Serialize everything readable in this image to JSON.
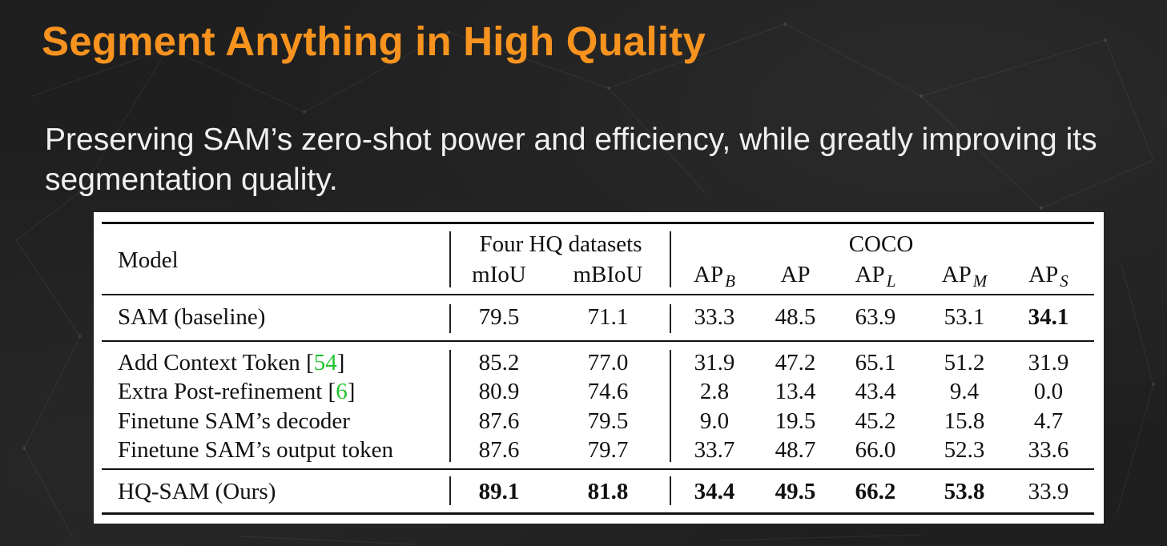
{
  "title": "Segment Anything in High Quality",
  "subtitle": "Preserving SAM’s zero-shot power and efficiency, while greatly improving its segmentation quality.",
  "table": {
    "header": {
      "model": "Model",
      "group_hq": "Four HQ datasets",
      "group_coco": "COCO",
      "mIoU": "mIoU",
      "mBIoU": "mBIoU",
      "ap": "AP",
      "sub_b": "B",
      "sub_l": "L",
      "sub_m": "M",
      "sub_s": "S"
    },
    "rows": [
      {
        "model": "SAM (baseline)",
        "cite": "",
        "values": [
          "79.5",
          "71.1",
          "33.3",
          "48.5",
          "63.9",
          "53.1",
          "34.1"
        ],
        "bold": [
          false,
          false,
          false,
          false,
          false,
          false,
          true
        ]
      },
      {
        "model": "Add Context Token",
        "cite": "54",
        "values": [
          "85.2",
          "77.0",
          "31.9",
          "47.2",
          "65.1",
          "51.2",
          "31.9"
        ],
        "bold": [
          false,
          false,
          false,
          false,
          false,
          false,
          false
        ]
      },
      {
        "model": "Extra Post-refinement",
        "cite": "6",
        "values": [
          "80.9",
          "74.6",
          "2.8",
          "13.4",
          "43.4",
          "9.4",
          "0.0"
        ],
        "bold": [
          false,
          false,
          false,
          false,
          false,
          false,
          false
        ]
      },
      {
        "model": "Finetune SAM’s decoder",
        "cite": "",
        "values": [
          "87.6",
          "79.5",
          "9.0",
          "19.5",
          "45.2",
          "15.8",
          "4.7"
        ],
        "bold": [
          false,
          false,
          false,
          false,
          false,
          false,
          false
        ]
      },
      {
        "model": "Finetune SAM’s output token",
        "cite": "",
        "values": [
          "87.6",
          "79.7",
          "33.7",
          "48.7",
          "66.0",
          "52.3",
          "33.6"
        ],
        "bold": [
          false,
          false,
          false,
          false,
          false,
          false,
          false
        ]
      },
      {
        "model": "HQ-SAM (Ours)",
        "cite": "",
        "values": [
          "89.1",
          "81.8",
          "34.4",
          "49.5",
          "66.2",
          "53.8",
          "33.9"
        ],
        "bold": [
          true,
          true,
          true,
          true,
          true,
          true,
          false
        ]
      }
    ]
  }
}
